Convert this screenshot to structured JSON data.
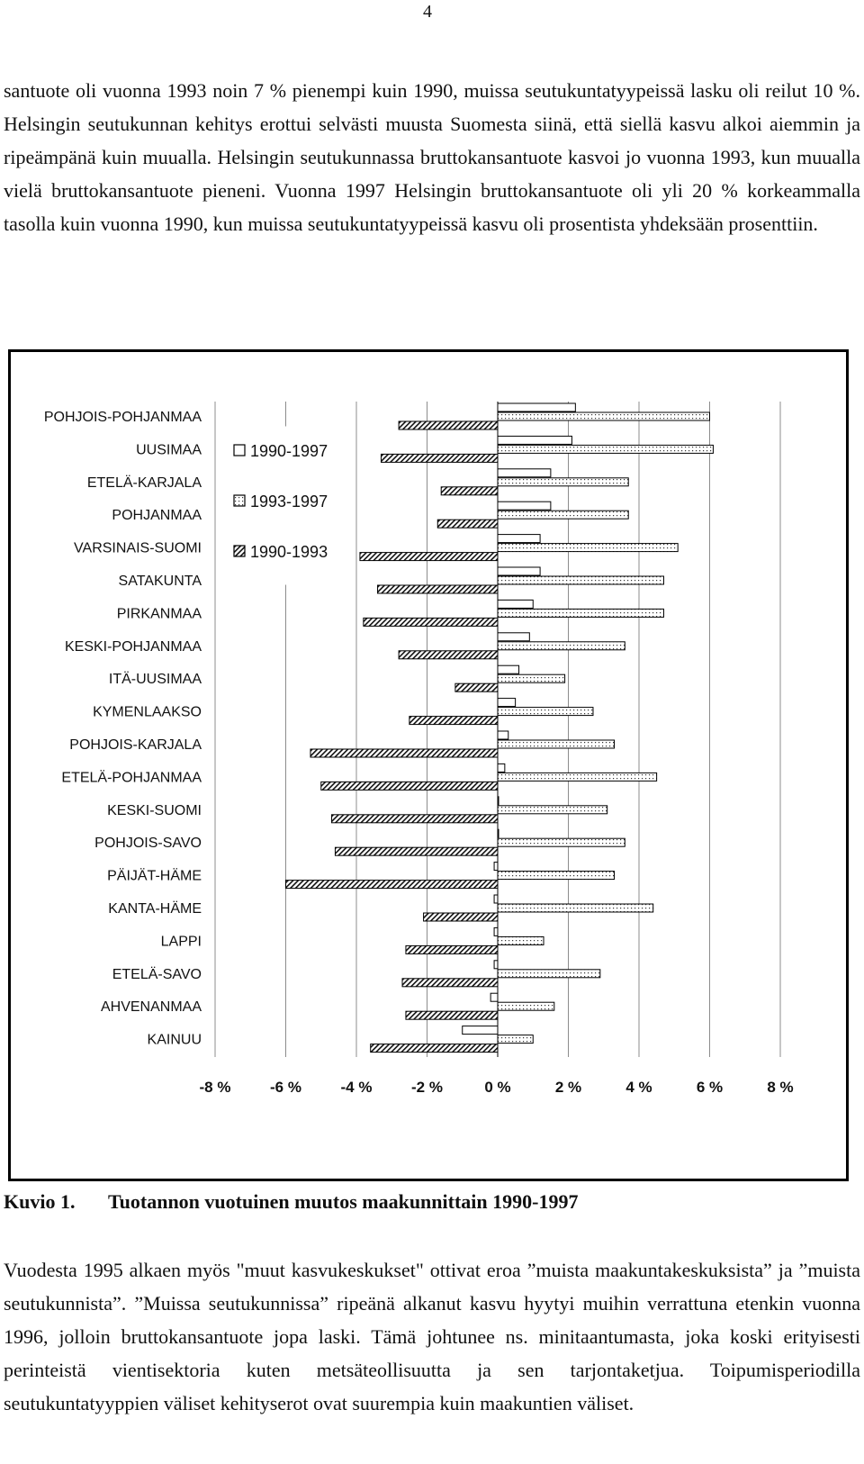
{
  "page_number": "4",
  "paragraph_1": "santuote oli vuonna 1993 noin 7 % pienempi kuin 1990, muissa seutukuntatyypeissä lasku oli reilut 10 %. Helsingin seutukunnan kehitys erottui selvästi muusta Suomesta siinä, että siellä kasvu alkoi aiemmin ja ripeämpänä kuin muualla. Helsingin seutukunnassa bruttokansantuote kasvoi jo vuonna 1993, kun muualla vielä bruttokansantuote pieneni. Vuonna 1997 Helsingin bruttokansantuote oli yli 20 % korkeammalla tasolla kuin vuonna 1990, kun muissa seutukuntatyypeissä kasvu oli prosentista yhdeksään prosenttiin.",
  "caption": {
    "number": "Kuvio 1.",
    "title": "Tuotannon vuotuinen muutos maakunnittain 1990-1997"
  },
  "paragraph_2": "Vuodesta 1995 alkaen myös \"muut kasvukeskukset\" ottivat eroa ”muista maakuntakeskuksista” ja ”muista seutukunnista”. ”Muissa seutukunnissa” ripeänä alkanut kasvu hyytyi muihin verrattuna etenkin vuonna 1996, jolloin bruttokansantuote jopa laski. Tämä johtunee ns. minitaantumasta, joka koski erityisesti perinteistä vientisektoria kuten metsäteollisuutta ja sen tarjontaketjua. Toipumisperiodilla seutukuntatyyppien väliset kehityserot ovat suurempia kuin maakuntien väliset.",
  "chart_data": {
    "type": "bar",
    "orientation": "horizontal",
    "categories": [
      "POHJOIS-POHJANMAA",
      "UUSIMAA",
      "ETELÄ-KARJALA",
      "POHJANMAA",
      "VARSINAIS-SUOMI",
      "SATAKUNTA",
      "PIRKANMAA",
      "KESKI-POHJANMAA",
      "ITÄ-UUSIMAA",
      "KYMENLAAKSO",
      "POHJOIS-KARJALA",
      "ETELÄ-POHJANMAA",
      "KESKI-SUOMI",
      "POHJOIS-SAVO",
      "PÄIJÄT-HÄME",
      "KANTA-HÄME",
      "LAPPI",
      "ETELÄ-SAVO",
      "AHVENANMAA",
      "KAINUU"
    ],
    "series": [
      {
        "name": "1990-1997",
        "pattern": "plain",
        "values": [
          2.2,
          2.1,
          1.5,
          1.5,
          1.2,
          1.2,
          1.0,
          0.9,
          0.6,
          0.5,
          0.3,
          0.2,
          0.0,
          0.0,
          -0.1,
          -0.1,
          -0.1,
          -0.1,
          -0.2,
          -1.0
        ]
      },
      {
        "name": "1993-1997",
        "pattern": "dots",
        "values": [
          6.0,
          6.1,
          3.7,
          3.7,
          5.1,
          4.7,
          4.7,
          3.6,
          1.9,
          2.7,
          3.3,
          4.5,
          3.1,
          3.6,
          3.3,
          4.4,
          1.3,
          2.9,
          1.6,
          1.0
        ]
      },
      {
        "name": "1990-1993",
        "pattern": "hatch",
        "values": [
          -2.8,
          -3.3,
          -1.6,
          -1.7,
          -3.9,
          -3.4,
          -3.8,
          -2.8,
          -1.2,
          -2.5,
          -5.3,
          -5.0,
          -4.7,
          -4.6,
          -6.0,
          -2.1,
          -2.6,
          -2.7,
          -2.6,
          -3.6
        ]
      }
    ],
    "xlim": [
      -8,
      8
    ],
    "x_ticks": [
      "-8 %",
      "-6 %",
      "-4 %",
      "-2 %",
      "0 %",
      "2 %",
      "4 %",
      "6 %",
      "8 %"
    ],
    "grid": true,
    "legend_position": "upper-left"
  }
}
